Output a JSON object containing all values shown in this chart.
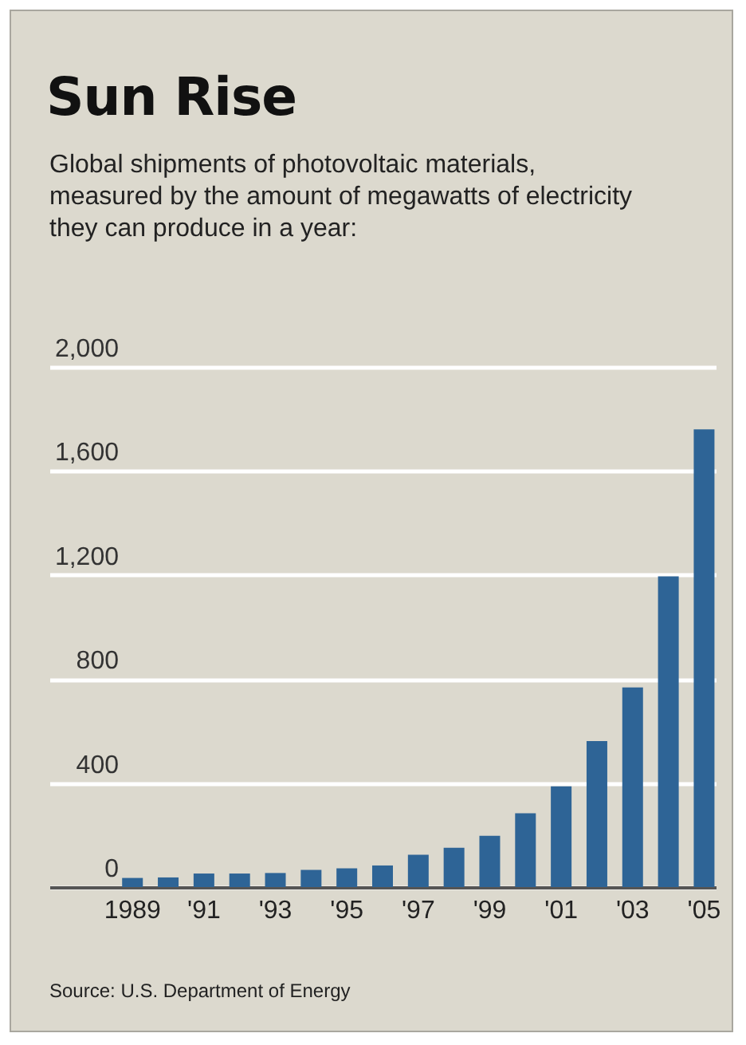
{
  "chart_data": {
    "type": "bar",
    "title": "Sun Rise",
    "subtitle": "Global shipments of photovoltaic materials, measured by the amount of megawatts of electricity they can produce in a year:",
    "categories": [
      "1989",
      null,
      "'91",
      null,
      "'93",
      null,
      "'95",
      null,
      "'97",
      null,
      "'99",
      null,
      "'01",
      null,
      "'03",
      null,
      "'05"
    ],
    "values": [
      35,
      37,
      52,
      52,
      54,
      66,
      72,
      83,
      124,
      151,
      197,
      284,
      387,
      561,
      768,
      1195,
      1760
    ],
    "color": "#2e6496",
    "ylim": [
      0,
      2000
    ],
    "yticks": [
      0,
      {
        "value": 400,
        "label": "400"
      },
      {
        "value": 800,
        "label": "800"
      },
      {
        "value": 1200,
        "label": "1,200"
      },
      {
        "value": 1600,
        "label": "1,600"
      },
      {
        "value": 2000,
        "label": "2,000"
      }
    ],
    "grid": "y",
    "annotations": [
      "Source: U.S. Department of Energy"
    ]
  }
}
